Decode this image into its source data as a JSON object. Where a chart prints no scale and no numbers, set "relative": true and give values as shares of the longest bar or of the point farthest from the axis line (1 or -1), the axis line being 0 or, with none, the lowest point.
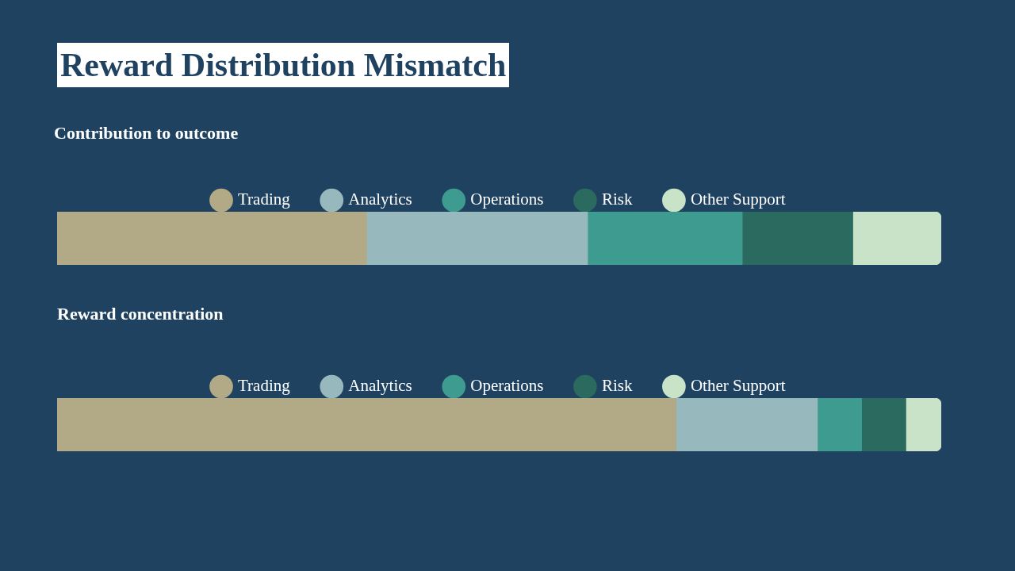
{
  "chart_data": [
    {
      "type": "bar",
      "title": "Reward Distribution Mismatch",
      "subtitle": "Contribution to outcome",
      "orientation": "horizontal",
      "stacked": true,
      "relative": true,
      "legend": "top",
      "categories": [
        null
      ],
      "series": [
        {
          "name": "Trading",
          "color": "#b2a986",
          "values": [
            0.35
          ]
        },
        {
          "name": "Analytics",
          "color": "#97b8bc",
          "values": [
            0.25
          ]
        },
        {
          "name": "Operations",
          "color": "#3e9b8f",
          "values": [
            0.175
          ]
        },
        {
          "name": "Risk",
          "color": "#2b6a5e",
          "values": [
            0.125
          ]
        },
        {
          "name": "Other Support",
          "color": "#c9e3c8",
          "values": [
            0.1
          ]
        }
      ]
    },
    {
      "type": "bar",
      "title": "Reward concentration",
      "orientation": "horizontal",
      "stacked": true,
      "relative": true,
      "legend": "top",
      "categories": [
        null
      ],
      "series": [
        {
          "name": "Trading",
          "color": "#b2a986",
          "values": [
            0.7
          ]
        },
        {
          "name": "Analytics",
          "color": "#97b8bc",
          "values": [
            0.16
          ]
        },
        {
          "name": "Operations",
          "color": "#3e9b8f",
          "values": [
            0.05
          ]
        },
        {
          "name": "Risk",
          "color": "#2b6a5e",
          "values": [
            0.05
          ]
        },
        {
          "name": "Other Support",
          "color": "#c9e3c8",
          "values": [
            0.04
          ]
        }
      ]
    }
  ]
}
